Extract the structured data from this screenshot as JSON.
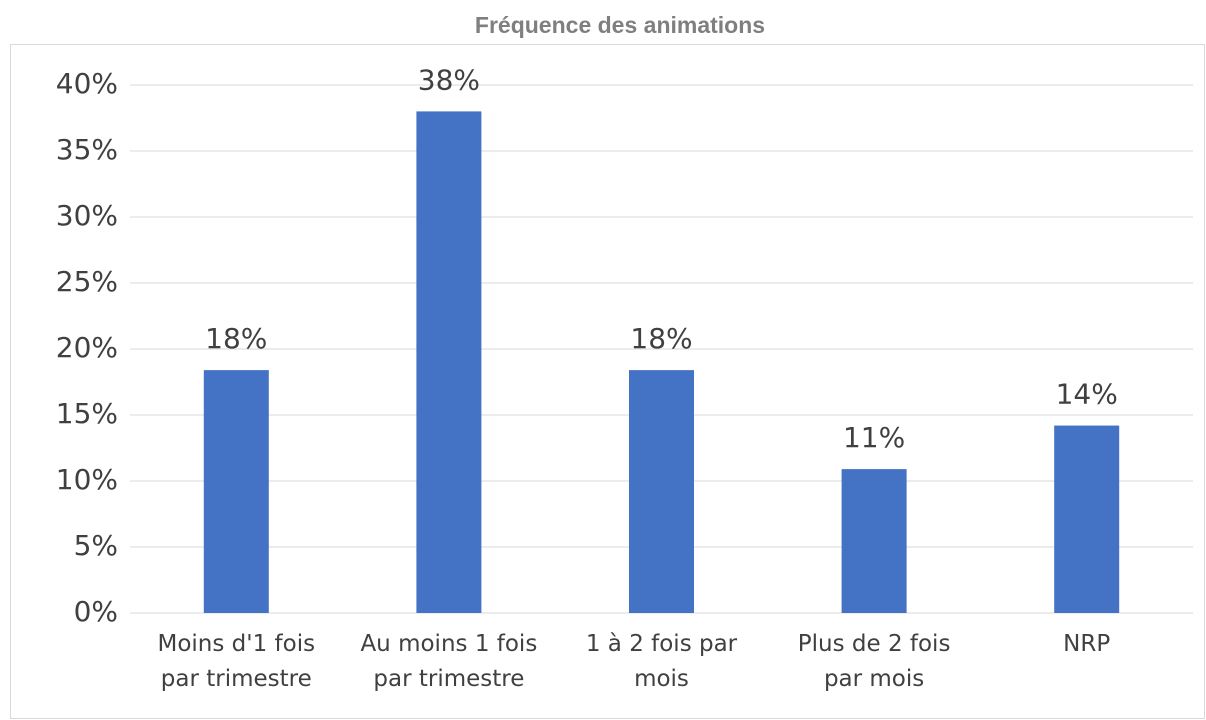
{
  "chart_data": {
    "type": "bar",
    "title": "Fréquence des animations",
    "categories": [
      "Moins d'1 fois\npar trimestre",
      "Au moins 1 fois\npar trimestre",
      "1 à 2 fois par\nmois",
      "Plus de 2 fois\npar mois",
      "NRP"
    ],
    "values": [
      18.4,
      38,
      18.4,
      10.9,
      14.2
    ],
    "value_labels": [
      "18%",
      "38%",
      "18%",
      "11%",
      "14%"
    ],
    "color": "#4472c4",
    "ylim": [
      0,
      40
    ],
    "yticks": [
      {
        "value": 0,
        "label": "0%"
      },
      {
        "value": 5,
        "label": "5%"
      },
      {
        "value": 10,
        "label": "10%"
      },
      {
        "value": 15,
        "label": "15%"
      },
      {
        "value": 20,
        "label": "20%"
      },
      {
        "value": 25,
        "label": "25%"
      },
      {
        "value": 30,
        "label": "30%"
      },
      {
        "value": 35,
        "label": "35%"
      },
      {
        "value": 40,
        "label": "40%"
      }
    ],
    "grid": true
  }
}
